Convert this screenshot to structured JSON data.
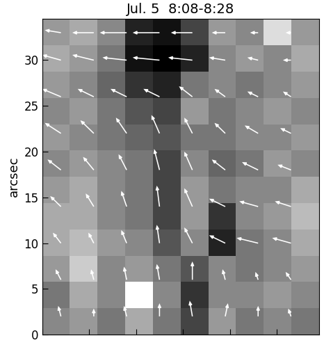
{
  "chart_data": {
    "type": "vector_map",
    "title": "Jul. 5  8:08-8:28",
    "y_label": "arcsec",
    "xlim": [
      0,
      29.5
    ],
    "ylim": [
      0,
      34.5
    ],
    "xticks": [
      0,
      5,
      10,
      15,
      20,
      25
    ],
    "yticks": [
      0,
      5,
      10,
      15,
      20,
      25,
      30
    ],
    "tick_labels": "y",
    "color": "#ffffff",
    "cells": [
      [
        0.5,
        0.55,
        0.45,
        0.6,
        0.45,
        0.3,
        0.55,
        0.45,
        0.5,
        0.45
      ],
      [
        0.45,
        0.6,
        0.5,
        0.85,
        0.5,
        0.25,
        0.5,
        0.5,
        0.55,
        0.5
      ],
      [
        0.55,
        0.7,
        0.5,
        0.55,
        0.45,
        0.35,
        0.5,
        0.45,
        0.5,
        0.55
      ],
      [
        0.6,
        0.65,
        0.55,
        0.5,
        0.35,
        0.5,
        0.2,
        0.45,
        0.5,
        0.6
      ],
      [
        0.6,
        0.6,
        0.5,
        0.45,
        0.3,
        0.55,
        0.25,
        0.5,
        0.55,
        0.65
      ],
      [
        0.55,
        0.6,
        0.5,
        0.45,
        0.3,
        0.55,
        0.45,
        0.5,
        0.5,
        0.6
      ],
      [
        0.5,
        0.55,
        0.5,
        0.45,
        0.3,
        0.5,
        0.4,
        0.45,
        0.55,
        0.5
      ],
      [
        0.55,
        0.5,
        0.45,
        0.4,
        0.35,
        0.45,
        0.45,
        0.5,
        0.5,
        0.55
      ],
      [
        0.5,
        0.55,
        0.45,
        0.35,
        0.3,
        0.55,
        0.45,
        0.5,
        0.55,
        0.5
      ],
      [
        0.55,
        0.5,
        0.4,
        0.25,
        0.2,
        0.45,
        0.5,
        0.45,
        0.5,
        0.55
      ],
      [
        0.6,
        0.55,
        0.45,
        0.15,
        0.1,
        0.2,
        0.5,
        0.55,
        0.5,
        0.6
      ],
      [
        0.55,
        0.6,
        0.5,
        0.2,
        0.15,
        0.3,
        0.55,
        0.5,
        0.75,
        0.55
      ]
    ],
    "vectors": {
      "x": [
        2,
        5.5,
        9,
        12.5,
        16,
        19.5,
        23,
        26.5
      ],
      "y": [
        2,
        6,
        10,
        14,
        18,
        22,
        26,
        30,
        33
      ],
      "u": [
        [
          -0.1,
          0.0,
          -0.1,
          0.0,
          -0.1,
          0.1,
          0.0,
          -0.1
        ],
        [
          -0.2,
          -0.1,
          -0.1,
          -0.1,
          0.0,
          -0.1,
          -0.1,
          -0.2
        ],
        [
          -0.3,
          -0.2,
          -0.2,
          -0.1,
          -0.3,
          -0.6,
          -0.8,
          -0.7
        ],
        [
          -0.4,
          -0.3,
          -0.2,
          -0.1,
          -0.3,
          -0.6,
          -0.7,
          -0.6
        ],
        [
          -0.5,
          -0.4,
          -0.3,
          -0.2,
          -0.3,
          -0.5,
          -0.6,
          -0.5
        ],
        [
          -0.6,
          -0.5,
          -0.4,
          -0.3,
          -0.3,
          -0.4,
          -0.5,
          -0.4
        ],
        [
          -0.7,
          -0.6,
          -0.6,
          -0.6,
          -0.5,
          -0.4,
          -0.4,
          -0.3
        ],
        [
          -0.7,
          -0.8,
          -0.9,
          -1.0,
          -0.9,
          -0.6,
          -0.4,
          -0.3
        ],
        [
          -0.6,
          -0.8,
          -1.0,
          -1.0,
          -0.8,
          -0.5,
          -0.3,
          -0.2
        ]
      ],
      "v": [
        [
          0.4,
          0.3,
          0.4,
          0.5,
          0.6,
          0.5,
          0.4,
          0.3
        ],
        [
          0.4,
          0.4,
          0.5,
          0.6,
          0.7,
          0.4,
          0.3,
          0.3
        ],
        [
          0.4,
          0.4,
          0.5,
          0.7,
          0.6,
          0.3,
          0.2,
          0.2
        ],
        [
          0.4,
          0.5,
          0.6,
          0.8,
          0.7,
          0.3,
          0.2,
          0.2
        ],
        [
          0.4,
          0.5,
          0.6,
          0.8,
          0.7,
          0.4,
          0.3,
          0.2
        ],
        [
          0.4,
          0.5,
          0.6,
          0.7,
          0.6,
          0.4,
          0.3,
          0.2
        ],
        [
          0.3,
          0.3,
          0.3,
          0.3,
          0.4,
          0.3,
          0.2,
          0.2
        ],
        [
          0.2,
          0.2,
          0.1,
          0.1,
          0.1,
          0.1,
          0.1,
          0.0
        ],
        [
          0.1,
          0.0,
          0.0,
          0.0,
          0.0,
          0.0,
          0.0,
          0.0
        ]
      ]
    }
  }
}
